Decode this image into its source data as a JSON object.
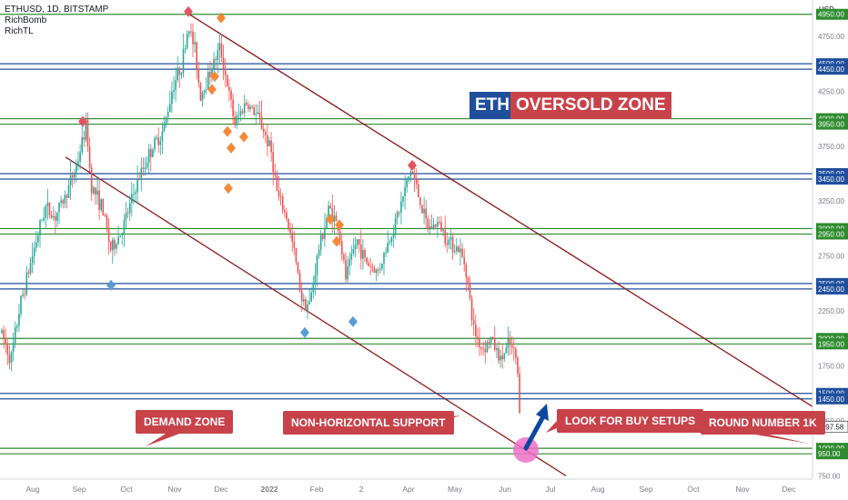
{
  "header": {
    "symbol_line": "ETHUSD, 1D, BITSTAMP",
    "indicators": [
      "RichBomb",
      "RichTL"
    ]
  },
  "currency_label": "USD",
  "title": {
    "ticker": "ETH",
    "phrase": "OVERSOLD ZONE",
    "ticker_bg": "#1f4e9c",
    "phrase_bg": "#c8424a"
  },
  "callouts": {
    "demand": "DEMAND ZONE",
    "support": "NON-HORIZONTAL SUPPORT",
    "buy": "LOOK FOR BUY SETUPS",
    "round": "ROUND NUMBER 1K"
  },
  "current_price": "1197.58",
  "colors": {
    "green_level": "#2e8b2e",
    "blue_level": "#1f4e9c",
    "trendline": "#8b1a1a",
    "up_candle": "#26a69a",
    "down_candle": "#ef5350",
    "sell_marker": "#f5893a",
    "top_marker": "#e05561",
    "buy_marker": "#5b9bd5",
    "arrow": "#0d47a1",
    "highlight": "#f06ec8"
  },
  "chart_data": {
    "type": "candlestick",
    "symbol": "ETHUSD",
    "timeframe": "1D",
    "exchange": "BITSTAMP",
    "ylim": [
      720,
      5080
    ],
    "y_ticks": [
      750,
      1250,
      1750,
      2250,
      2750,
      3250,
      3750,
      4250,
      4750
    ],
    "y_tick_labels": [
      "750.00",
      "1250.00",
      "1750.00",
      "2250.00",
      "2750.00",
      "3250.00",
      "3750.00",
      "4250.00",
      "4750.00"
    ],
    "x_tick_labels": [
      "Aug",
      "Sep",
      "Oct",
      "Nov",
      "Dec",
      "2022",
      "Feb",
      "2",
      "Apr",
      "May",
      "Jun",
      "Jul",
      "Aug",
      "Sep",
      "Oct",
      "Nov",
      "Dec"
    ],
    "last_price": 1197.58,
    "horizontal_levels": [
      {
        "price": 4950,
        "label": "4950.00",
        "color": "green"
      },
      {
        "price": 4500,
        "label": "4500.00",
        "color": "blue"
      },
      {
        "price": 4450,
        "label": "4450.00",
        "color": "blue"
      },
      {
        "price": 4000,
        "label": "4000.00",
        "color": "green"
      },
      {
        "price": 3950,
        "label": "3950.00",
        "color": "green"
      },
      {
        "price": 3500,
        "label": "3500.00",
        "color": "blue"
      },
      {
        "price": 3450,
        "label": "3450.00",
        "color": "blue"
      },
      {
        "price": 3000,
        "label": "3000.00",
        "color": "green"
      },
      {
        "price": 2950,
        "label": "2950.00",
        "color": "green"
      },
      {
        "price": 2500,
        "label": "2500.00",
        "color": "blue"
      },
      {
        "price": 2450,
        "label": "2450.00",
        "color": "blue"
      },
      {
        "price": 2000,
        "label": "2000.00",
        "color": "green"
      },
      {
        "price": 1950,
        "label": "1950.00",
        "color": "green"
      },
      {
        "price": 1500,
        "label": "1500.00",
        "color": "blue"
      },
      {
        "price": 1450,
        "label": "1450.00",
        "color": "blue"
      },
      {
        "price": 1000,
        "label": "1000.00",
        "color": "green"
      },
      {
        "price": 950,
        "label": "950.00",
        "color": "green"
      }
    ],
    "price_path": [
      [
        2,
        2050
      ],
      [
        12,
        1800
      ],
      [
        22,
        2300
      ],
      [
        40,
        2900
      ],
      [
        50,
        3200
      ],
      [
        60,
        3100
      ],
      [
        72,
        3300
      ],
      [
        85,
        3600
      ],
      [
        95,
        3950
      ],
      [
        100,
        3400
      ],
      [
        112,
        3200
      ],
      [
        122,
        2800
      ],
      [
        135,
        3000
      ],
      [
        150,
        3400
      ],
      [
        165,
        3700
      ],
      [
        180,
        3900
      ],
      [
        190,
        4300
      ],
      [
        200,
        4500
      ],
      [
        207,
        4850
      ],
      [
        215,
        4600
      ],
      [
        220,
        4200
      ],
      [
        232,
        4450
      ],
      [
        242,
        4650
      ],
      [
        250,
        4300
      ],
      [
        258,
        3950
      ],
      [
        270,
        4150
      ],
      [
        285,
        4000
      ],
      [
        298,
        3700
      ],
      [
        305,
        3300
      ],
      [
        315,
        3100
      ],
      [
        323,
        2800
      ],
      [
        332,
        2350
      ],
      [
        340,
        2300
      ],
      [
        350,
        2800
      ],
      [
        362,
        3200
      ],
      [
        372,
        3000
      ],
      [
        380,
        2550
      ],
      [
        392,
        2900
      ],
      [
        402,
        2700
      ],
      [
        415,
        2600
      ],
      [
        428,
        2900
      ],
      [
        440,
        3200
      ],
      [
        452,
        3550
      ],
      [
        460,
        3300
      ],
      [
        470,
        3000
      ],
      [
        482,
        3050
      ],
      [
        492,
        2900
      ],
      [
        505,
        2800
      ],
      [
        512,
        2650
      ],
      [
        520,
        2100
      ],
      [
        530,
        1900
      ],
      [
        540,
        2000
      ],
      [
        550,
        1800
      ],
      [
        560,
        1950
      ],
      [
        568,
        1800
      ],
      [
        572,
        1250
      ]
    ],
    "sell_signals_price": [
      4850,
      4200,
      3300,
      3800,
      4450,
      3950,
      3900,
      3150,
      2950,
      3100
    ],
    "buy_signals_price": [
      2550,
      2120,
      2220
    ],
    "swing_high_markers_price": [
      3950,
      4950,
      3550
    ]
  }
}
